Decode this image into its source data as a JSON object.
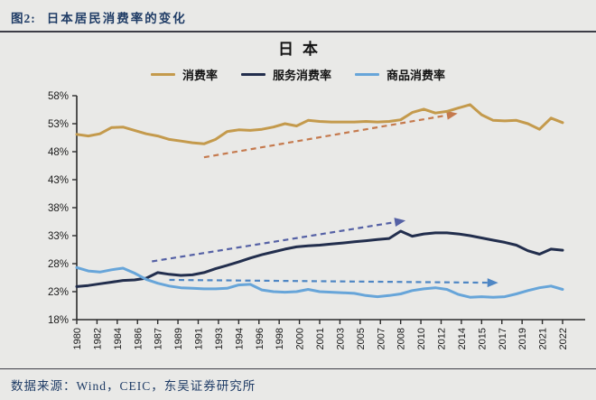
{
  "header": {
    "figure_label": "图2:",
    "figure_title": "日本居民消费率的变化"
  },
  "footer": {
    "source_text": "数据来源：Wind，CEIC，东吴证券研究所"
  },
  "colors": {
    "page_background": "#e9e9e7",
    "heading_text": "#1f3c66",
    "axis": "#2b2b2b",
    "consumption_line": "#c49a4c",
    "service_line": "#222e4d",
    "goods_line": "#67a5d9",
    "consumption_trend_arrow": "#c57a4e",
    "service_trend_arrow": "#5561a5",
    "goods_trend_arrow": "#4e86c4"
  },
  "chart_data": {
    "type": "line",
    "title": "日本",
    "legend_position": "top",
    "grid": false,
    "ylim": [
      18,
      58
    ],
    "ytick_step": 5,
    "ytick_suffix": "%",
    "x": [
      1980,
      1981,
      1982,
      1983,
      1984,
      1985,
      1986,
      1987,
      1988,
      1989,
      1990,
      1991,
      1992,
      1993,
      1994,
      1995,
      1996,
      1997,
      1998,
      1999,
      2000,
      2001,
      2002,
      2003,
      2004,
      2005,
      2006,
      2007,
      2008,
      2009,
      2010,
      2011,
      2012,
      2013,
      2014,
      2015,
      2016,
      2017,
      2018,
      2019,
      2020,
      2021,
      2022
    ],
    "x_tick_labels": [
      "1980",
      "1982",
      "1984",
      "1986",
      "1987",
      "1989",
      "1991",
      "1993",
      "1994",
      "1996",
      "1998",
      "2000",
      "2001",
      "2003",
      "2005",
      "2007",
      "2008",
      "2010",
      "2012",
      "2014",
      "2015",
      "2017",
      "2019",
      "2021",
      "2022"
    ],
    "series": [
      {
        "id": "consumption-rate",
        "name": "消费率",
        "color": "#c49a4c",
        "values": [
          51.1,
          50.8,
          51.2,
          52.3,
          52.4,
          51.8,
          51.2,
          50.8,
          50.2,
          49.9,
          49.6,
          49.4,
          50.2,
          51.6,
          51.9,
          51.8,
          52.0,
          52.4,
          53.0,
          52.6,
          53.6,
          53.4,
          53.3,
          53.3,
          53.3,
          53.4,
          53.3,
          53.4,
          53.7,
          55.0,
          55.6,
          54.9,
          55.2,
          55.8,
          56.4,
          54.6,
          53.6,
          53.5,
          53.6,
          53.0,
          52.0,
          54.0,
          53.2
        ]
      },
      {
        "id": "service-consumption-rate",
        "name": "服务消费率",
        "color": "#222e4d",
        "values": [
          23.9,
          24.1,
          24.4,
          24.7,
          25.0,
          25.1,
          25.4,
          26.4,
          26.1,
          25.9,
          26.0,
          26.4,
          27.1,
          27.7,
          28.3,
          29.0,
          29.6,
          30.1,
          30.6,
          31.0,
          31.2,
          31.3,
          31.5,
          31.7,
          31.9,
          32.1,
          32.3,
          32.5,
          33.8,
          32.9,
          33.3,
          33.5,
          33.5,
          33.3,
          33.0,
          32.6,
          32.2,
          31.8,
          31.3,
          30.3,
          29.7,
          30.6,
          30.4
        ]
      },
      {
        "id": "goods-consumption-rate",
        "name": "商品消费率",
        "color": "#67a5d9",
        "values": [
          27.3,
          26.7,
          26.5,
          26.9,
          27.2,
          26.3,
          25.2,
          24.5,
          24.0,
          23.7,
          23.6,
          23.5,
          23.5,
          23.6,
          24.2,
          24.3,
          23.3,
          23.0,
          22.9,
          23.0,
          23.4,
          23.0,
          22.9,
          22.8,
          22.7,
          22.3,
          22.1,
          22.3,
          22.6,
          23.2,
          23.5,
          23.7,
          23.4,
          22.5,
          22.0,
          22.1,
          22.0,
          22.1,
          22.6,
          23.2,
          23.7,
          24.0,
          23.4
        ]
      }
    ],
    "trend_arrows": [
      {
        "id": "consumption-trend-arrow",
        "color": "#c57a4e",
        "from": {
          "year": 1991,
          "value": 47.0
        },
        "to": {
          "year": 2012,
          "value": 54.5
        }
      },
      {
        "id": "service-trend-arrow",
        "color": "#5561a5",
        "from": {
          "year": 1986.5,
          "value": 28.4
        },
        "to": {
          "year": 2007.5,
          "value": 35.4
        }
      },
      {
        "id": "goods-trend-arrow",
        "color": "#4e86c4",
        "from": {
          "year": 1988,
          "value": 25.1
        },
        "to": {
          "year": 2015.5,
          "value": 24.6
        }
      }
    ]
  }
}
